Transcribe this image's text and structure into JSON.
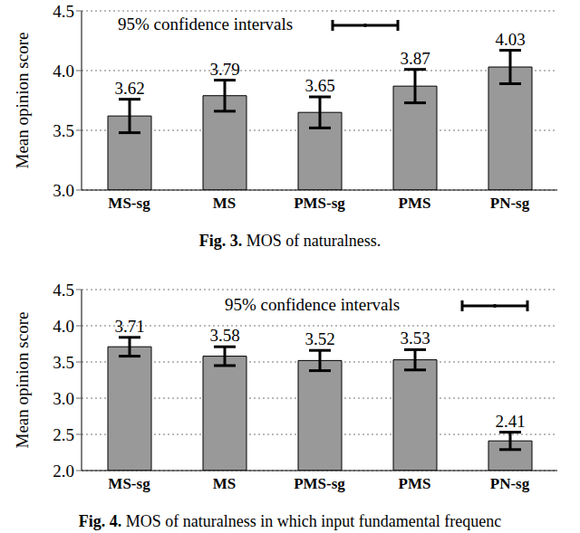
{
  "chart_data": [
    {
      "type": "bar",
      "caption": "Fig. 3. MOS of naturalness.",
      "ylabel": "Mean opinion score",
      "annotation": "95% confidence intervals",
      "categories": [
        "MS-sg",
        "MS",
        "PMS-sg",
        "PMS",
        "PN-sg"
      ],
      "values": [
        3.62,
        3.79,
        3.65,
        3.87,
        4.03
      ],
      "errors": [
        0.14,
        0.13,
        0.13,
        0.14,
        0.14
      ],
      "color": "#999999",
      "ylim": [
        3,
        4.5
      ],
      "yticks": [
        {
          "value": 3,
          "label": "3.0"
        },
        {
          "value": 3.5,
          "label": "3.5"
        },
        {
          "value": 4,
          "label": "4.0"
        },
        {
          "value": 4.5,
          "label": "4.5"
        }
      ],
      "grid": true,
      "data_labels": true
    },
    {
      "type": "bar",
      "caption": "Fig. 4. MOS of naturalness in which input fundamental frequenc",
      "ylabel": "Mean opinion score",
      "annotation": "95% confidence intervals",
      "categories": [
        "MS-sg",
        "MS",
        "PMS-sg",
        "PMS",
        "PN-sg"
      ],
      "values": [
        3.71,
        3.58,
        3.52,
        3.53,
        2.41
      ],
      "errors": [
        0.13,
        0.13,
        0.14,
        0.14,
        0.12
      ],
      "color": "#999999",
      "ylim": [
        2,
        4.5
      ],
      "yticks": [
        {
          "value": 2,
          "label": "2.0"
        },
        {
          "value": 2.5,
          "label": "2.5"
        },
        {
          "value": 3,
          "label": "3.0"
        },
        {
          "value": 3.5,
          "label": "3.5"
        },
        {
          "value": 4,
          "label": "4.0"
        },
        {
          "value": 4.5,
          "label": "4.5"
        }
      ],
      "grid": true,
      "data_labels": true
    }
  ]
}
